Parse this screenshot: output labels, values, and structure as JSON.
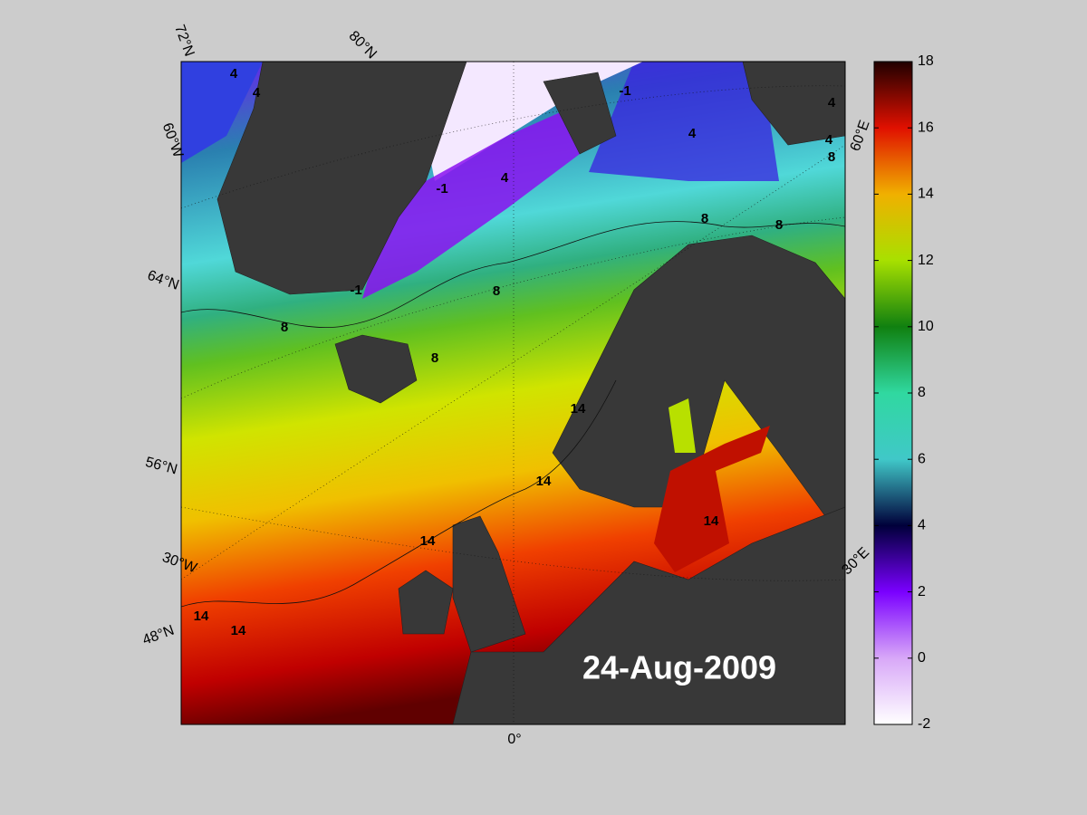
{
  "map": {
    "date": "24-Aug-2009",
    "graticule_labels": [
      "72°N",
      "80°N",
      "60°W",
      "64°N",
      "56°N",
      "30°W",
      "48°N",
      "0°",
      "30°E",
      "60°E"
    ],
    "contour_labels": [
      4,
      4,
      -1,
      4,
      4,
      4,
      8,
      -1,
      4,
      8,
      8,
      -1,
      8,
      8,
      8,
      14,
      14,
      14,
      14,
      14,
      14
    ]
  },
  "chart_data": {
    "type": "colorbar",
    "ylim": [
      -2,
      18
    ],
    "yticks": [
      -2,
      0,
      2,
      4,
      6,
      8,
      10,
      12,
      14,
      16,
      18
    ],
    "colormap": [
      "#ffffff",
      "#d8a8f8",
      "#7a00ff",
      "#00003a",
      "#40c8c8",
      "#30d8a0",
      "#108010",
      "#a8e000",
      "#f0b000",
      "#e01000",
      "#200000"
    ]
  }
}
